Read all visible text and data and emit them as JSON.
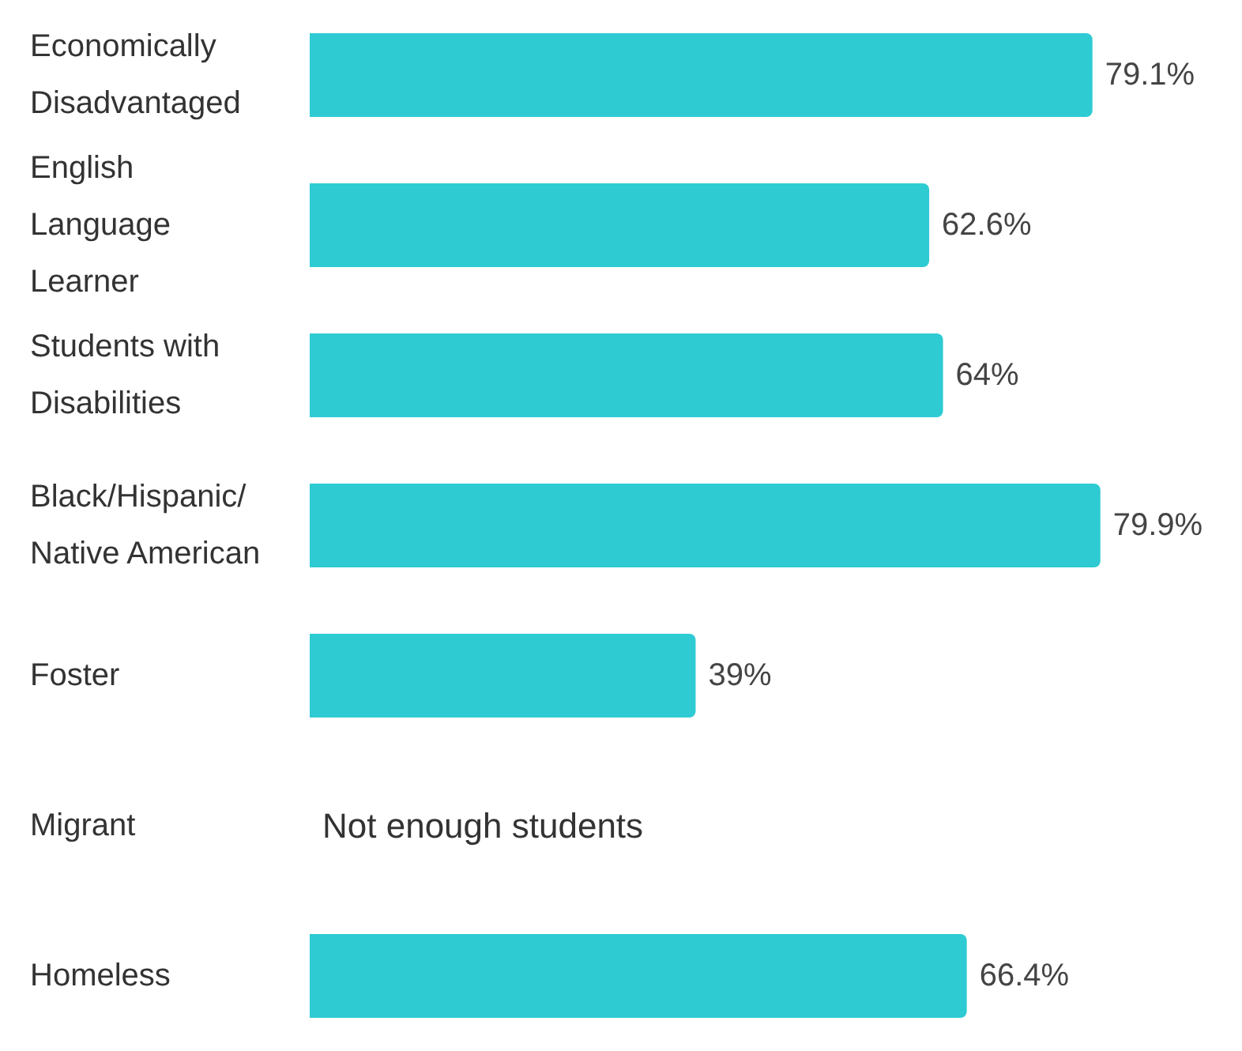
{
  "chart_data": {
    "type": "bar",
    "orientation": "horizontal",
    "categories": [
      "Economically Disadvantaged",
      "English Language Learner",
      "Students with Disabilities",
      "Black/Hispanic/ Native American",
      "Foster",
      "Migrant",
      "Homeless"
    ],
    "values": [
      79.1,
      62.6,
      64,
      79.9,
      39,
      null,
      66.4
    ],
    "value_labels": [
      "79.1%",
      "62.6%",
      "64%",
      "79.9%",
      "39%",
      null,
      "66.4%"
    ],
    "color": "#2ecbd3",
    "tick_labels": "y",
    "annotations": [
      "Not enough students"
    ]
  }
}
